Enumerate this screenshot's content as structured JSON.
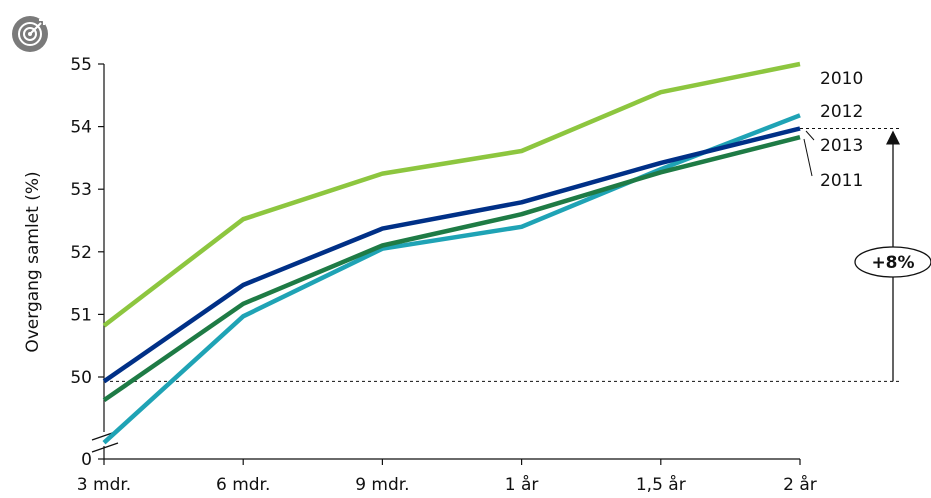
{
  "chart_data": {
    "type": "line",
    "ylabel": "Overgang samlet (%)",
    "xlabel": "",
    "categories": [
      "3 mdr.",
      "6 mdr.",
      "9 mdr.",
      "1 år",
      "1,5 år",
      "2 år"
    ],
    "y_ticks": [
      "0",
      "50",
      "51",
      "52",
      "53",
      "54",
      "55"
    ],
    "ylim": [
      49.7,
      55
    ],
    "axis_break": true,
    "series": [
      {
        "name": "2010",
        "color": "#8dc63f",
        "values": [
          50.82,
          52.52,
          53.25,
          53.61,
          54.55,
          55.0
        ]
      },
      {
        "name": "2012",
        "color": "#1fa3b5",
        "values": [
          48.95,
          50.97,
          52.05,
          52.4,
          53.32,
          54.18
        ]
      },
      {
        "name": "2013",
        "color": "#003087",
        "values": [
          49.93,
          51.47,
          52.37,
          52.79,
          53.42,
          53.97
        ]
      },
      {
        "name": "2011",
        "color": "#1e7b45",
        "values": [
          49.63,
          51.17,
          52.1,
          52.6,
          53.27,
          53.83
        ]
      }
    ],
    "annotation": {
      "label": "+8%",
      "from_value": 49.93,
      "to_value": 53.97
    },
    "grid": false
  },
  "icon": "target-icon"
}
